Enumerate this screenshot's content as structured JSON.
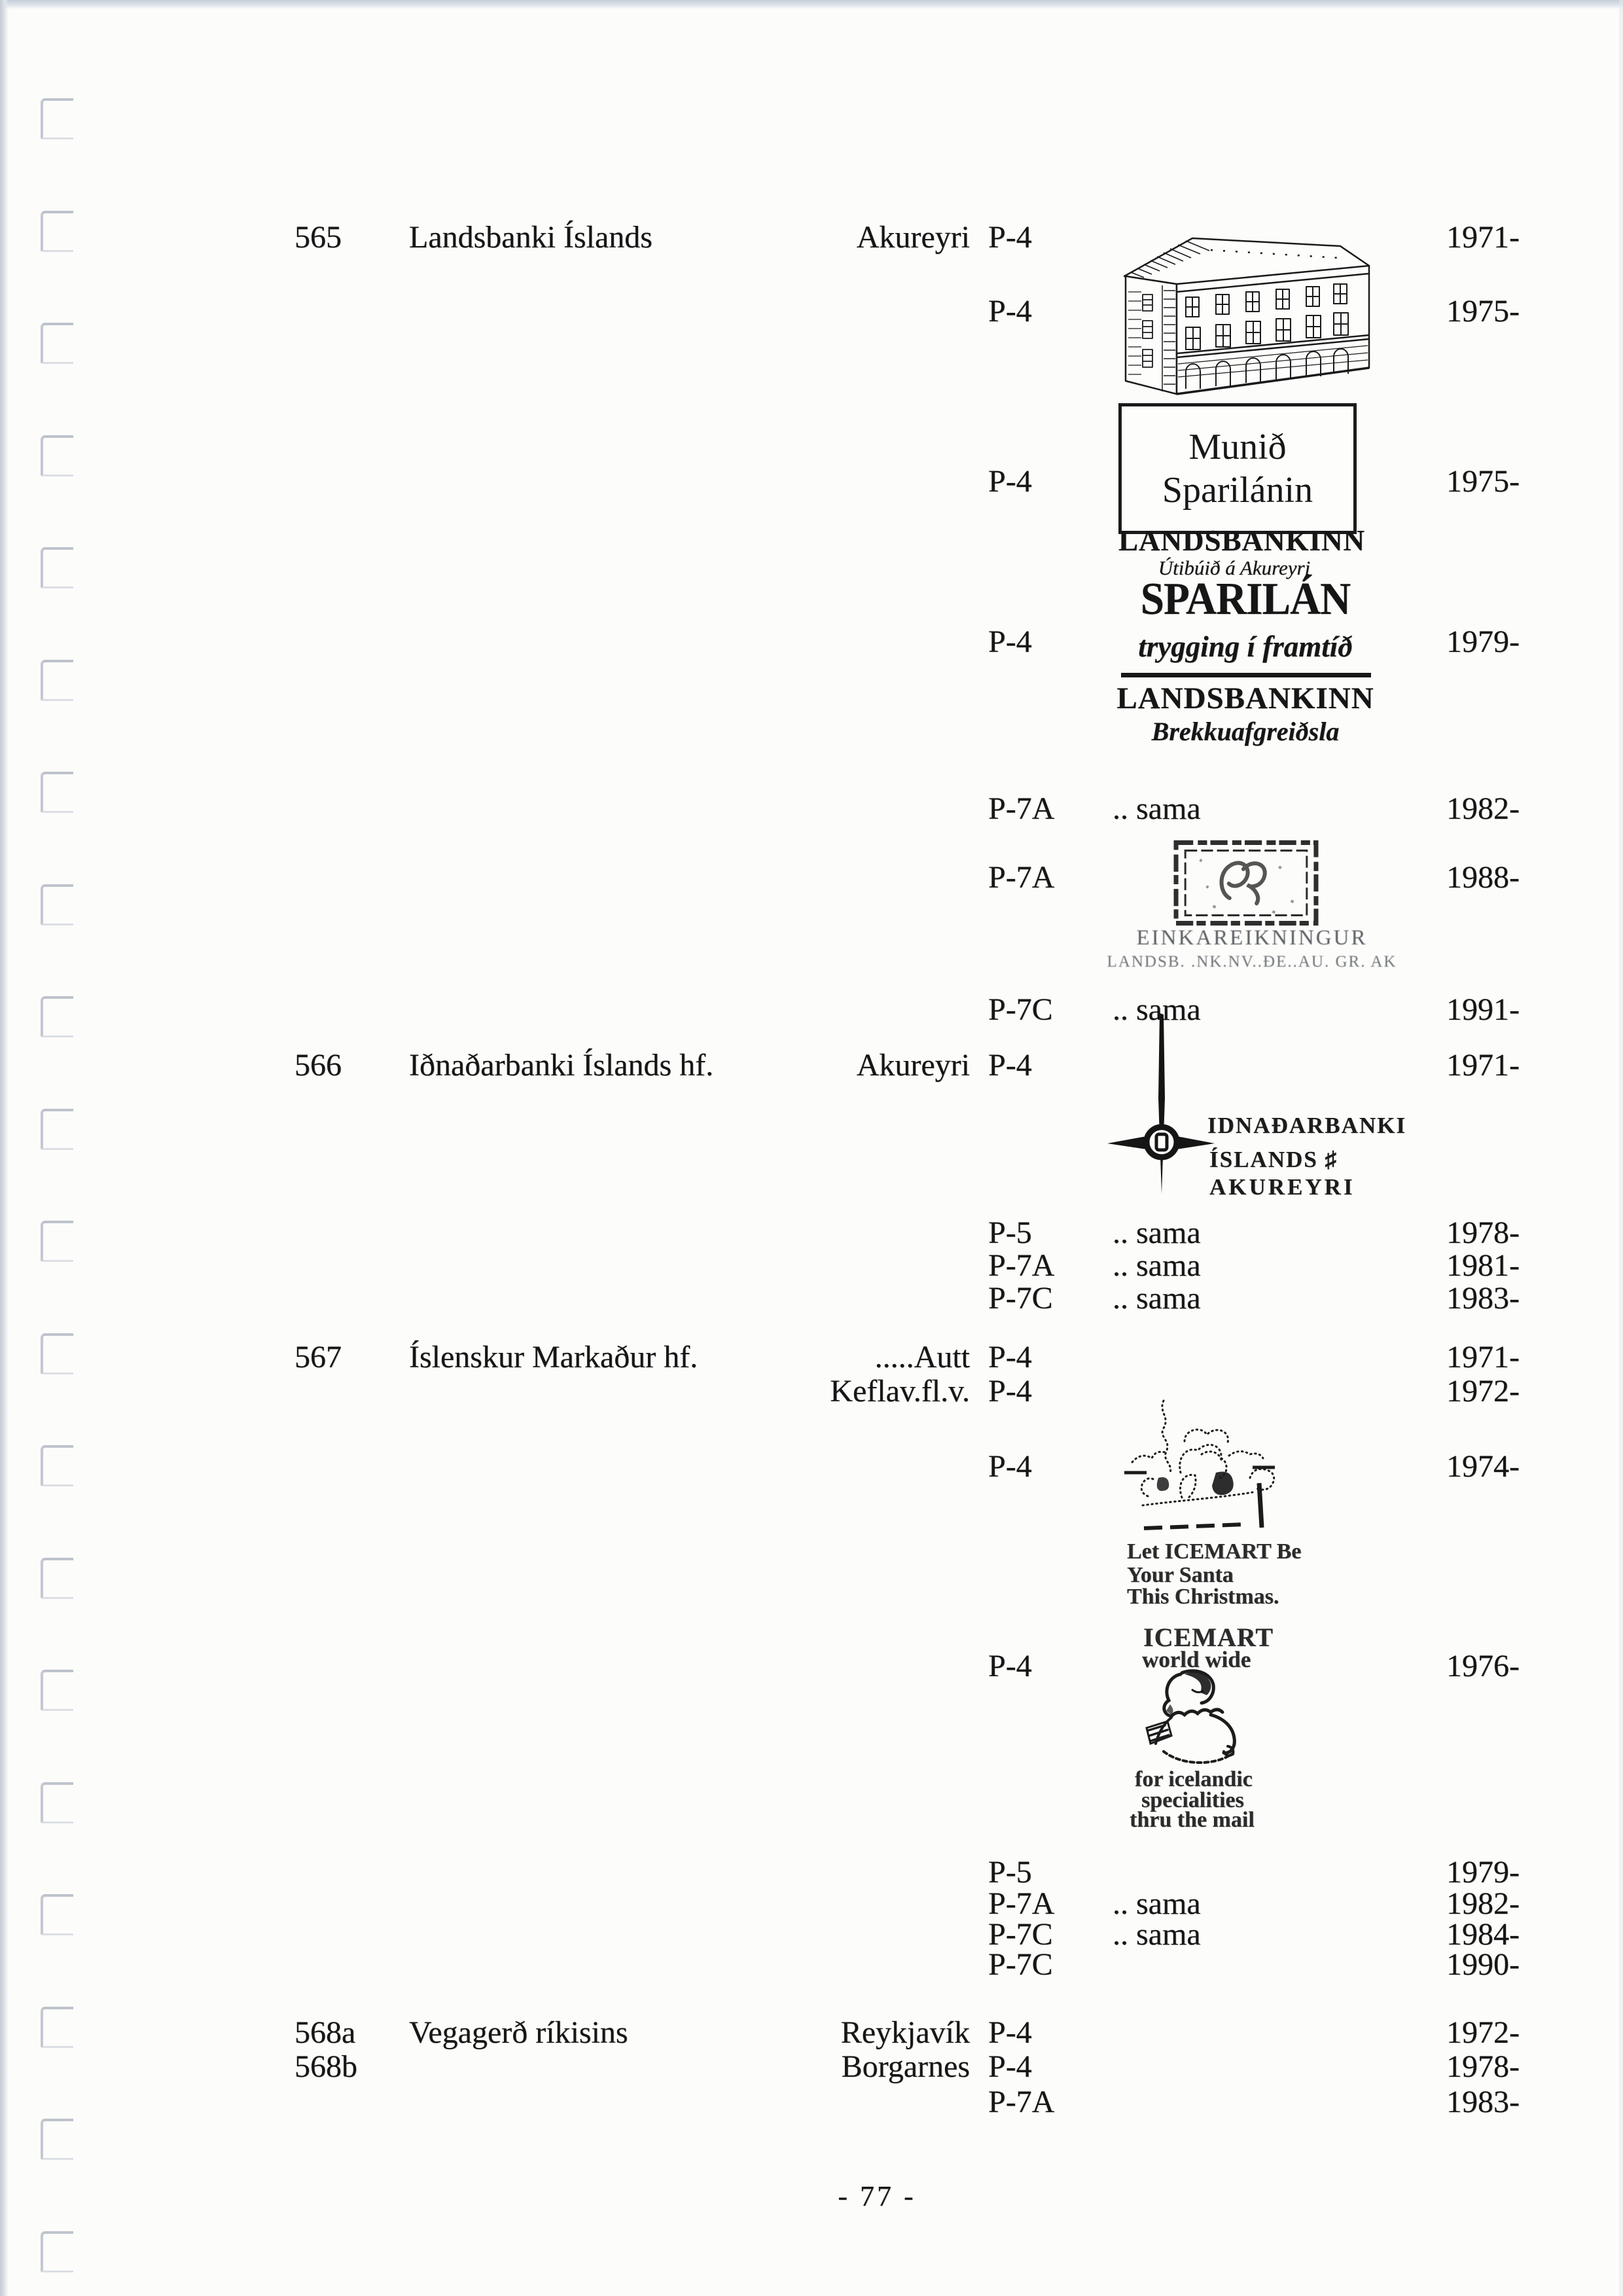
{
  "page": {
    "footer": "- 77 -"
  },
  "entries": [
    {
      "num": "565",
      "name": "Landsbanki Íslands",
      "loc": "Akureyri",
      "pcode": "P-4",
      "year": "1971-"
    },
    {
      "pcode": "P-4",
      "year": "1975-"
    },
    {
      "pcode": "P-4",
      "year": "1975-"
    },
    {
      "pcode": "P-4",
      "year": "1979-"
    },
    {
      "pcode": "P-7A",
      "note": ".. sama",
      "year": "1982-"
    },
    {
      "pcode": "P-7A",
      "year": "1988-"
    },
    {
      "pcode": "P-7C",
      "note": ".. sama",
      "year": "1991-"
    },
    {
      "num": "566",
      "name": "Iðnaðarbanki Íslands  hf.",
      "loc": "Akureyri",
      "pcode": "P-4",
      "year": "1971-"
    },
    {
      "pcode": "P-5",
      "note": ".. sama",
      "year": "1978-"
    },
    {
      "pcode": "P-7A",
      "note": ".. sama",
      "year": "1981-"
    },
    {
      "pcode": "P-7C",
      "note": ".. sama",
      "year": "1983-"
    },
    {
      "num": "567",
      "name": "Íslenskur Markaður hf.",
      "loc": ".....Autt",
      "pcode": "P-4",
      "year": "1971-"
    },
    {
      "loc": "Keflav.fl.v.",
      "pcode": "P-4",
      "year": "1972-"
    },
    {
      "pcode": "P-4",
      "year": "1974-"
    },
    {
      "pcode": "P-4",
      "year": "1976-"
    },
    {
      "pcode": "P-5",
      "year": "1979-"
    },
    {
      "pcode": "P-7A",
      "note": ".. sama",
      "year": "1982-"
    },
    {
      "pcode": "P-7C",
      "note": ".. sama",
      "year": "1984-"
    },
    {
      "pcode": "P-7C",
      "year": "1990-"
    },
    {
      "num": "568a",
      "name": "Vegagerð ríkisins",
      "loc": "Reykjavík",
      "pcode": "P-4",
      "year": "1972-"
    },
    {
      "num": "568b",
      "loc": "Borgarnes",
      "pcode": "P-4",
      "year": "1978-"
    },
    {
      "pcode": "P-7A",
      "year": "1983-"
    }
  ],
  "logos": {
    "munid_box": {
      "line1": "Munið",
      "line2": "Sparilánin"
    },
    "landsbankinn_akureyri": {
      "bank": "LANDSBANKINN",
      "branch": "Útibúið á Akureyri"
    },
    "sparilan": {
      "title": "SPARILÁN",
      "tagline": "trygging í framtíð",
      "bank": "LANDSBANKINN",
      "branch": "Brekkuafgreiðsla"
    },
    "einkareikningur_stamp": {
      "line1": "EINKAREIKNINGUR",
      "line2": "LANDSB. .NK.NV..ÐE..AU.   GR. AK"
    },
    "idnadarbanki": {
      "line1": "IDNAÐARBANKI",
      "line2": "ÍSLANDS ♯",
      "line3": "AKUREYRI"
    },
    "icemart_santa": {
      "line1": "Let ICEMART Be",
      "line2": "Your Santa",
      "line3": "This Christmas."
    },
    "icemart_worldwide": {
      "name": "ICEMART",
      "tagline": "world wide",
      "line1": "for icelandic",
      "line2": "specialities",
      "line3": "thru the mail"
    }
  }
}
